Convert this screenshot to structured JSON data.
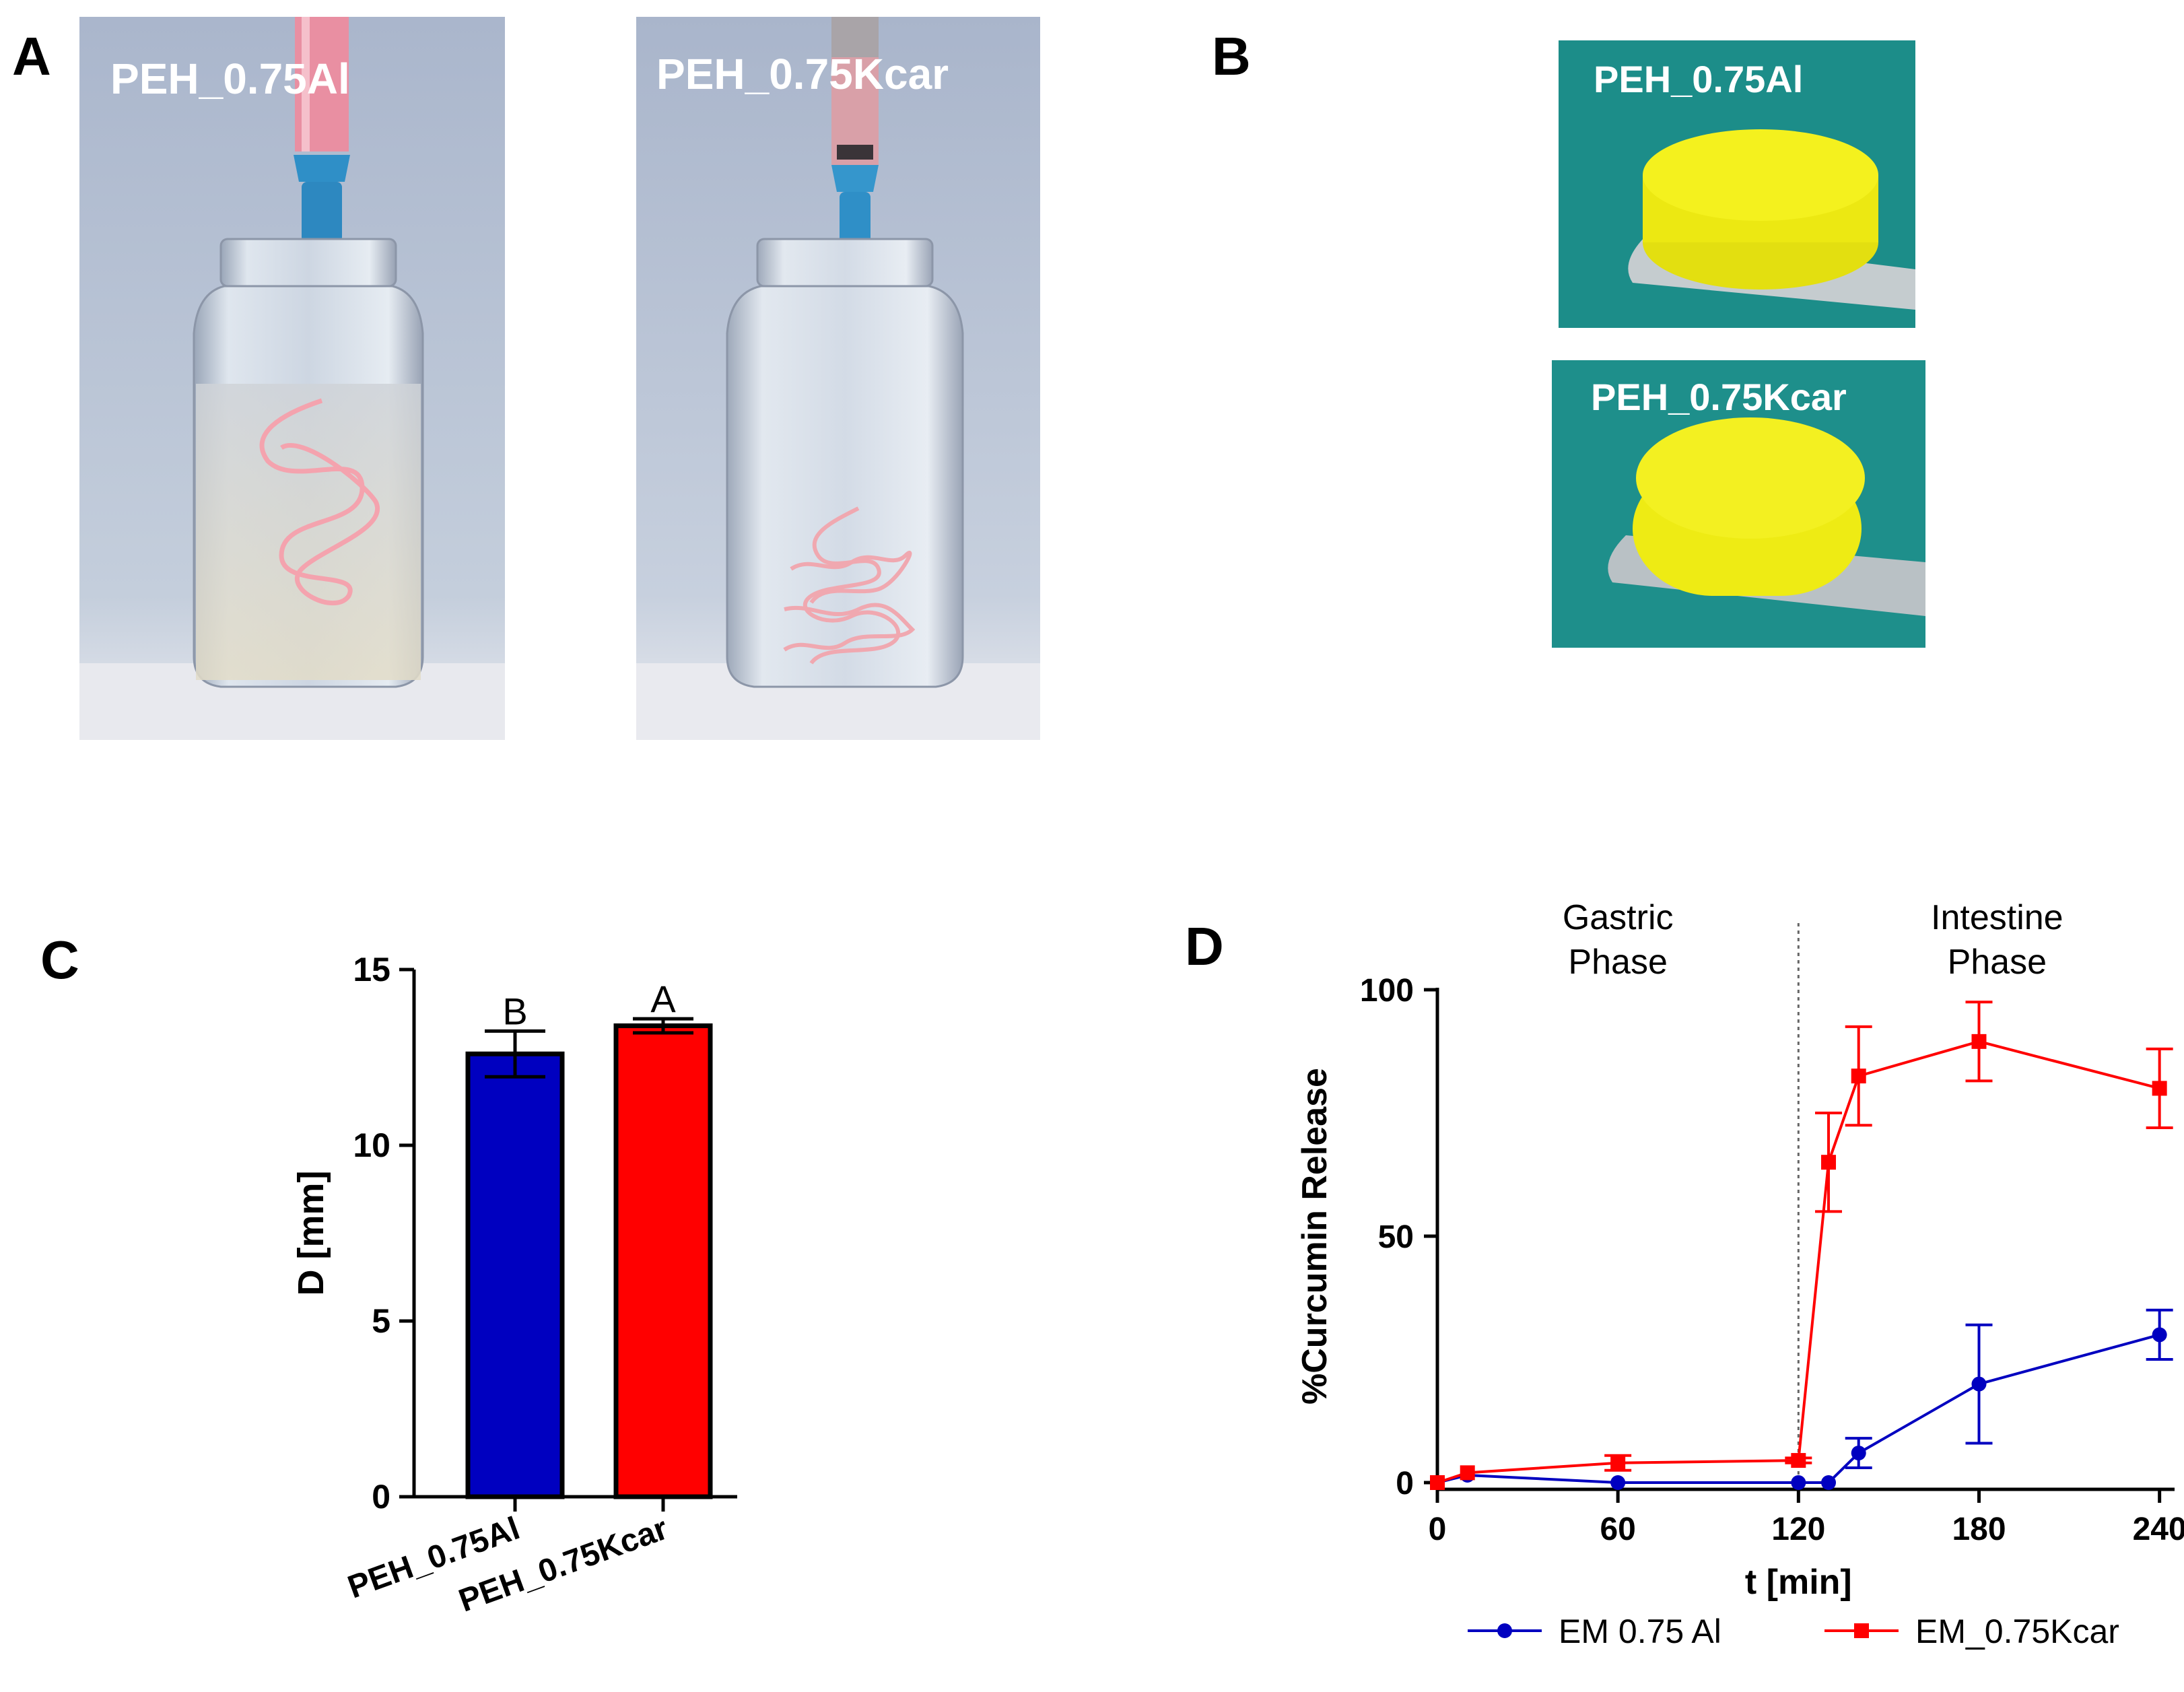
{
  "panels": {
    "a": "A",
    "b": "B",
    "c": "C",
    "d": "D"
  },
  "panel_a": {
    "left_label": "PEH_0.75Al",
    "right_label": "PEH_0.75Kcar"
  },
  "panel_b": {
    "top_label": "PEH_0.75Al",
    "bottom_label": "PEH_0.75Kcar"
  },
  "colors": {
    "al_series": "#0000c0",
    "kcar_series": "#ff0000",
    "photo_background": "#b8c4d6",
    "teal_background": "#1b8f8a",
    "gel_yellow": "#f2ee10",
    "thread_pink": "#f4a3ae"
  },
  "chart_data": [
    {
      "type": "bar",
      "ylabel": "D [mm]",
      "categories": [
        "PEH_0.75Al",
        "PEH_0.75Kcar"
      ],
      "values": [
        12.6,
        13.4
      ],
      "errors": [
        0.65,
        0.2
      ],
      "letters": [
        "B",
        "A"
      ],
      "ylim": [
        0,
        15
      ],
      "yticks": [
        "0",
        "5",
        "10",
        "15"
      ],
      "colors": [
        "#0000c0",
        "#ff0000"
      ]
    },
    {
      "type": "line",
      "xlabel": "t [min]",
      "ylabel": "%Curcumin Release",
      "xlim": [
        0,
        245
      ],
      "ylim": [
        0,
        100
      ],
      "xticks": [
        "0",
        "60",
        "120",
        "180",
        "240"
      ],
      "yticks": [
        "0",
        "50",
        "100"
      ],
      "phase_divider_x": 120,
      "annotations": [
        "Gastric\nPhase",
        "Intestine\nPhase"
      ],
      "annotation_lines": [
        [
          "Gastric",
          "Phase"
        ],
        [
          "Intestine",
          "Phase"
        ]
      ],
      "series": [
        {
          "name": "EM 0.75 Al",
          "marker": "circle",
          "x": [
            0,
            10,
            60,
            120,
            130,
            140,
            180,
            240
          ],
          "y": [
            0,
            1.5,
            0,
            0,
            0,
            6,
            20,
            30
          ],
          "err": [
            0,
            0,
            0,
            0,
            0,
            3,
            12,
            5
          ]
        },
        {
          "name": "EM_0.75Kcar",
          "marker": "square",
          "x": [
            0,
            10,
            60,
            120,
            130,
            140,
            180,
            240
          ],
          "y": [
            0,
            2,
            4,
            4.5,
            65,
            82.5,
            89.5,
            80
          ],
          "err": [
            0,
            0,
            1.5,
            0.5,
            10,
            10,
            8,
            8
          ]
        }
      ]
    }
  ]
}
